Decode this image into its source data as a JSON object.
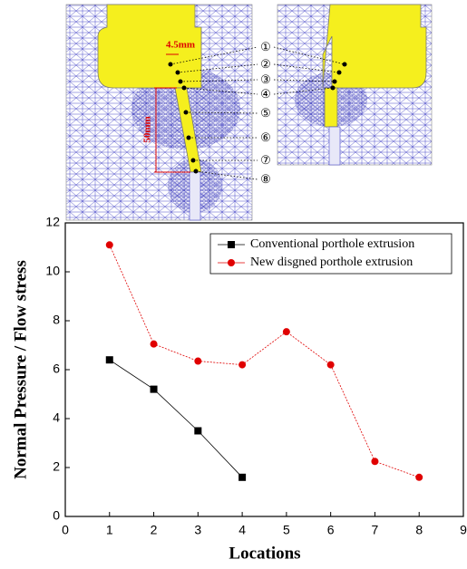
{
  "diagram": {
    "labels": [
      "①",
      "②",
      "③",
      "④",
      "⑤",
      "⑥",
      "⑦",
      "⑧"
    ],
    "dimensions": [
      "4.5mm",
      "50mm"
    ]
  },
  "chart_data": {
    "type": "line",
    "x": [
      1,
      2,
      3,
      4,
      5,
      6,
      7,
      8
    ],
    "series": [
      {
        "name": "Conventional porthole extrusion",
        "color": "#000000",
        "marker": "square",
        "values": [
          6.4,
          5.2,
          3.5,
          1.6,
          null,
          null,
          null,
          null
        ]
      },
      {
        "name": "New disgned porthole extrusion",
        "color": "#e00000",
        "marker": "circle",
        "values": [
          11.1,
          7.05,
          6.35,
          6.2,
          7.55,
          6.2,
          2.25,
          1.6
        ]
      }
    ],
    "xlabel": "Locations",
    "ylabel": "Normal Pressure / Flow stress",
    "xlim": [
      0,
      9
    ],
    "xticks": [
      0,
      1,
      2,
      3,
      4,
      5,
      6,
      7,
      8,
      9
    ],
    "ylim": [
      0,
      12
    ],
    "yticks": [
      0,
      2,
      4,
      6,
      8,
      10,
      12
    ],
    "legend": "top-right"
  }
}
